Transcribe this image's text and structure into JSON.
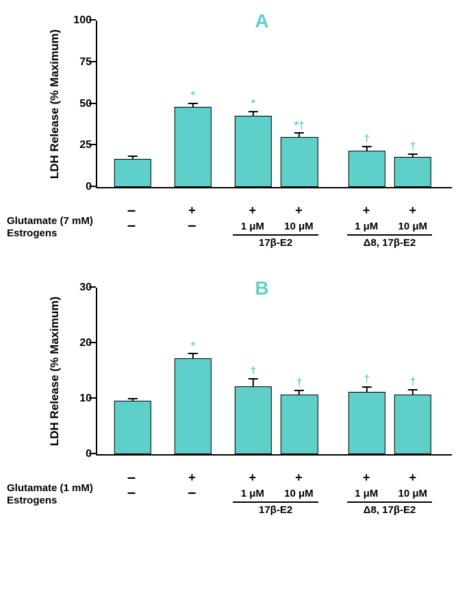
{
  "bar_color": "#5fd0c9",
  "sig_color": "#5fd0c9",
  "panel_label_color": "#5fd0c9",
  "axis_color": "#000000",
  "bar_width_pct": 10.5,
  "bar_positions_pct": [
    10,
    27,
    44,
    57,
    76,
    89
  ],
  "group1_start_pct": 38.5,
  "group1_end_pct": 62.5,
  "group2_start_pct": 70.5,
  "group2_end_pct": 94.5,
  "panels": [
    {
      "id": "A",
      "ylabel": "LDH Release (% Maximum)",
      "ymax": 100,
      "yticks": [
        0,
        25,
        50,
        75,
        100
      ],
      "glutamate_label": "Glutamate (7 mM)",
      "estrogens_label": "Estrogens",
      "bars": [
        {
          "value": 17,
          "err": 1,
          "sig": ""
        },
        {
          "value": 48,
          "err": 2,
          "sig": "*"
        },
        {
          "value": 43,
          "err": 2,
          "sig": "*"
        },
        {
          "value": 30,
          "err": 2,
          "sig": "*†"
        },
        {
          "value": 22,
          "err": 2,
          "sig": "†"
        },
        {
          "value": 18,
          "err": 1.5,
          "sig": "†"
        }
      ]
    },
    {
      "id": "B",
      "ylabel": "LDH Release (% Maximum)",
      "ymax": 30,
      "yticks": [
        0,
        10,
        20,
        30
      ],
      "glutamate_label": "Glutamate (1 mM)",
      "estrogens_label": "Estrogens",
      "bars": [
        {
          "value": 9.6,
          "err": 0.3,
          "sig": ""
        },
        {
          "value": 17.3,
          "err": 0.7,
          "sig": "*"
        },
        {
          "value": 12.2,
          "err": 1.3,
          "sig": "†"
        },
        {
          "value": 10.8,
          "err": 0.6,
          "sig": "†"
        },
        {
          "value": 11.2,
          "err": 0.8,
          "sig": "†"
        },
        {
          "value": 10.7,
          "err": 0.8,
          "sig": "†"
        }
      ]
    }
  ],
  "xaxis": {
    "glutamate_row": [
      "–",
      "+",
      "+",
      "+",
      "+",
      "+"
    ],
    "conc_row": [
      "–",
      "–",
      "1 μM",
      "10 μM",
      "1 μM",
      "10 μM"
    ],
    "group1_label": "17β-E₂",
    "group2_label": "Δ⁸, 17β-E₂"
  }
}
